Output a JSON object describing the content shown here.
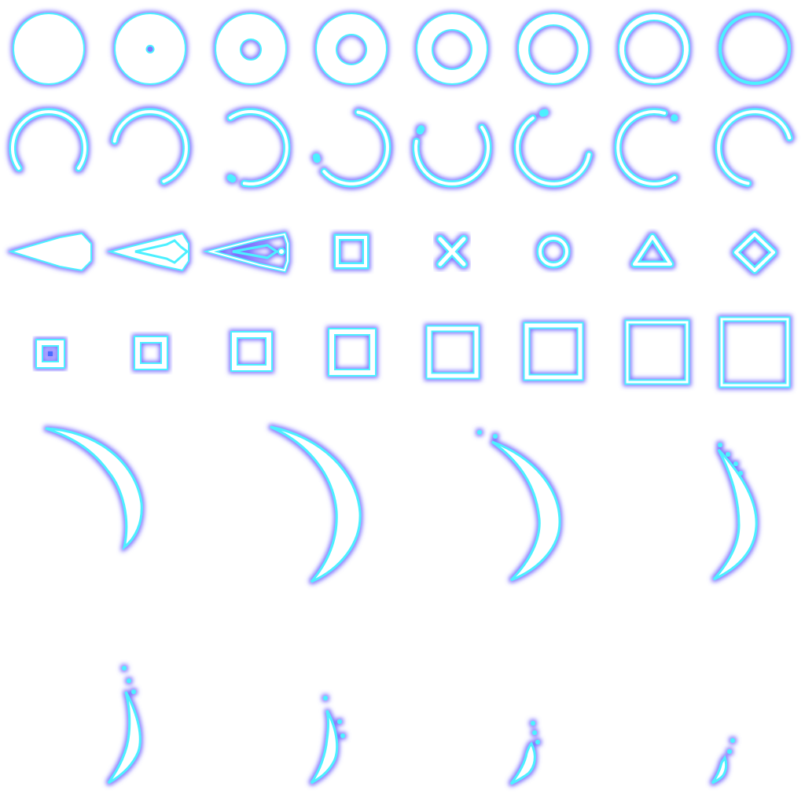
{
  "sprite_sheet": {
    "palette": {
      "fill": "#ffffff",
      "edge": "#4cf0ff",
      "glow": "#6a5cff",
      "background": "#ffffff"
    },
    "rows": [
      {
        "name": "ring-sequence",
        "frames": [
          {
            "icon": "solid-circle-sprite-icon",
            "hole_ratio": 0.0
          },
          {
            "icon": "ring-sprite-icon",
            "hole_ratio": 0.1
          },
          {
            "icon": "ring-sprite-icon",
            "hole_ratio": 0.3
          },
          {
            "icon": "ring-sprite-icon",
            "hole_ratio": 0.42
          },
          {
            "icon": "ring-sprite-icon",
            "hole_ratio": 0.55
          },
          {
            "icon": "ring-sprite-icon",
            "hole_ratio": 0.68
          },
          {
            "icon": "ring-sprite-icon",
            "hole_ratio": 0.8
          },
          {
            "icon": "thin-ring-sprite-icon",
            "hole_ratio": 0.93
          }
        ]
      },
      {
        "name": "arc-spin-sequence",
        "frames": [
          {
            "icon": "arc-sprite-icon",
            "rotation_deg": 0
          },
          {
            "icon": "arc-sprite-icon",
            "rotation_deg": 45
          },
          {
            "icon": "arc-sprite-icon",
            "rotation_deg": 90
          },
          {
            "icon": "arc-sprite-icon",
            "rotation_deg": 135
          },
          {
            "icon": "arc-sprite-icon",
            "rotation_deg": 180
          },
          {
            "icon": "arc-sprite-icon",
            "rotation_deg": 225
          },
          {
            "icon": "arc-sprite-icon",
            "rotation_deg": 270
          },
          {
            "icon": "arc-sprite-icon",
            "rotation_deg": 315
          }
        ]
      },
      {
        "name": "projectile-and-symbols",
        "frames": [
          {
            "icon": "solid-dart-sprite-icon"
          },
          {
            "icon": "outline-dart-sprite-icon"
          },
          {
            "icon": "thin-dart-sprite-icon"
          },
          {
            "icon": "square-symbol-icon"
          },
          {
            "icon": "cross-symbol-icon"
          },
          {
            "icon": "circle-symbol-icon"
          },
          {
            "icon": "triangle-symbol-icon"
          },
          {
            "icon": "diamond-symbol-icon"
          }
        ]
      },
      {
        "name": "square-grow-sequence",
        "frames": [
          {
            "icon": "square-frame-sprite-icon",
            "scale": 0.35
          },
          {
            "icon": "square-frame-sprite-icon",
            "scale": 0.45
          },
          {
            "icon": "square-frame-sprite-icon",
            "scale": 0.55
          },
          {
            "icon": "square-frame-sprite-icon",
            "scale": 0.65
          },
          {
            "icon": "square-frame-sprite-icon",
            "scale": 0.75
          },
          {
            "icon": "square-frame-sprite-icon",
            "scale": 0.85
          },
          {
            "icon": "square-frame-sprite-icon",
            "scale": 0.95
          },
          {
            "icon": "square-frame-sprite-icon",
            "scale": 1.0
          }
        ]
      },
      {
        "name": "crescent-slash-sequence",
        "frames": [
          {
            "icon": "crescent-slash-sprite-icon"
          },
          {
            "icon": "crescent-slash-sprite-icon"
          },
          {
            "icon": "crescent-slash-sprite-icon"
          },
          {
            "icon": "crescent-slash-sprite-icon"
          },
          {
            "icon": "crescent-slash-sprite-icon"
          },
          {
            "icon": "crescent-slash-sprite-icon"
          },
          {
            "icon": "crescent-slash-sprite-icon"
          },
          {
            "icon": "crescent-slash-sprite-icon"
          }
        ]
      }
    ]
  }
}
